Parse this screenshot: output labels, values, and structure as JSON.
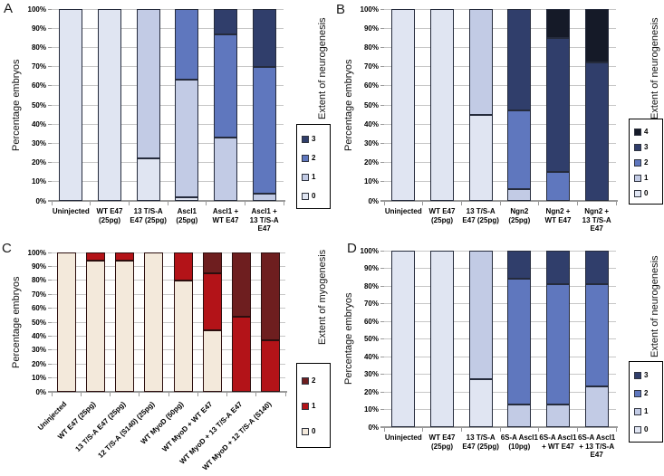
{
  "figure_title": "Extent of neurogenesis and myogenesis stacked bar figure",
  "yticks": [
    "100%",
    "90%",
    "80%",
    "70%",
    "60%",
    "50%",
    "40%",
    "30%",
    "20%",
    "10%",
    "0%"
  ],
  "chart_data": [
    {
      "type": "bar",
      "stacked": true,
      "panel_letter": "A",
      "ylabel": "Percentage embryos",
      "right_label": "Extent of neurogenesis",
      "ylim": [
        0,
        100
      ],
      "grid": true,
      "legend_position": "right",
      "legend_order": [
        "3",
        "2",
        "1",
        "0"
      ],
      "colors": {
        "0": "#e0e5f2",
        "1": "#c2cbe5",
        "2": "#5f77be",
        "3": "#303e6b",
        "4": "#151a28"
      },
      "segment_border": "#252b3c",
      "categories": [
        "Uninjected",
        "WT E47 (25pg)",
        "13 T/S-A E47 (25pg)",
        "Ascl1 (25pg)",
        "Ascl1 + WT E47",
        "Ascl1 + 13 T/S-A E47"
      ],
      "category_lines": [
        [
          "Uninjected"
        ],
        [
          "WT E47",
          "(25pg)"
        ],
        [
          "13 T/S-A",
          "E47 (25pg)"
        ],
        [
          "Ascl1",
          "(25pg)"
        ],
        [
          "Ascl1  +",
          "WT E47"
        ],
        [
          "Ascl1  +",
          "13 T/S-A",
          "E47"
        ]
      ],
      "series": [
        {
          "name": "0",
          "values": [
            100,
            100,
            22,
            2,
            0,
            0
          ]
        },
        {
          "name": "1",
          "values": [
            0,
            0,
            78,
            61,
            33,
            4
          ]
        },
        {
          "name": "2",
          "values": [
            0,
            0,
            0,
            37,
            54,
            66
          ]
        },
        {
          "name": "3",
          "values": [
            0,
            0,
            0,
            0,
            13,
            30
          ]
        }
      ]
    },
    {
      "type": "bar",
      "stacked": true,
      "panel_letter": "B",
      "ylabel": "Percentage embryos",
      "right_label": "Extent of neurogenesis",
      "ylim": [
        0,
        100
      ],
      "grid": true,
      "legend_position": "right",
      "legend_order": [
        "4",
        "3",
        "2",
        "1",
        "0"
      ],
      "colors": {
        "0": "#e0e5f2",
        "1": "#c2cbe5",
        "2": "#5f77be",
        "3": "#303e6b",
        "4": "#151a28"
      },
      "segment_border": "#252b3c",
      "categories": [
        "Uninjected",
        "WT E47 (25pg)",
        "13 T/S-A E47 (25pg)",
        "Ngn2 (25pg)",
        "Ngn2 + WT E47",
        "Ngn2 + 13 T/S-A E47"
      ],
      "category_lines": [
        [
          "Uninjected"
        ],
        [
          "WT E47",
          "(25pg)"
        ],
        [
          "13 T/S-A",
          "E47 (25pg)"
        ],
        [
          "Ngn2",
          "(25pg)"
        ],
        [
          "Ngn2 +",
          "WT E47"
        ],
        [
          "Ngn2 +",
          "13 T/S-A",
          "E47"
        ]
      ],
      "series": [
        {
          "name": "0",
          "values": [
            100,
            100,
            45,
            0,
            0,
            0
          ]
        },
        {
          "name": "1",
          "values": [
            0,
            0,
            55,
            6,
            0,
            0
          ]
        },
        {
          "name": "2",
          "values": [
            0,
            0,
            0,
            41,
            15,
            0
          ]
        },
        {
          "name": "3",
          "values": [
            0,
            0,
            0,
            53,
            70,
            72
          ]
        },
        {
          "name": "4",
          "values": [
            0,
            0,
            0,
            0,
            15,
            28
          ]
        }
      ]
    },
    {
      "type": "bar",
      "stacked": true,
      "panel_letter": "C",
      "ylabel": "Percentage embryos",
      "right_label": "Extent of myogenesis",
      "ylim": [
        0,
        100
      ],
      "grid": true,
      "legend_position": "right",
      "legend_order": [
        "2",
        "1",
        "0"
      ],
      "colors": {
        "0": "#f3e9db",
        "1": "#b31318",
        "2": "#6e1e1f"
      },
      "segment_border": "#2c0e0e",
      "categories": [
        "Uninjected",
        "WT E47 (25pg)",
        "13 T/S-A E47 (25pg)",
        "12 T/S-A (S140) (25pg)",
        "WT MyoD (50pg)",
        "WT MyoD + WT E47",
        "WT MyoD + 13 T/S-A E47",
        "WT MyoD + 12 T/S-A (S140)"
      ],
      "category_lines": [
        [
          "Uninjected"
        ],
        [
          "WT E47 (25pg)"
        ],
        [
          "13 T/S-A E47 (25pg)"
        ],
        [
          "12 T/S-A (S140) (25pg)"
        ],
        [
          "WT MyoD (50pg)"
        ],
        [
          "WT MyoD + WT E47"
        ],
        [
          "WT MyoD + 13 T/S-A E47"
        ],
        [
          "WT MyoD + 12 T/S-A (S140)"
        ]
      ],
      "series": [
        {
          "name": "0",
          "values": [
            100,
            94,
            94,
            100,
            80,
            44,
            0,
            0
          ]
        },
        {
          "name": "1",
          "values": [
            0,
            6,
            6,
            0,
            20,
            41,
            54,
            37
          ]
        },
        {
          "name": "2",
          "values": [
            0,
            0,
            0,
            0,
            0,
            15,
            46,
            63
          ]
        }
      ]
    },
    {
      "type": "bar",
      "stacked": true,
      "panel_letter": "D",
      "ylabel": "Percentage embryos",
      "right_label": "Extent of neurogenesis",
      "ylim": [
        0,
        100
      ],
      "grid": true,
      "legend_position": "right",
      "legend_order": [
        "3",
        "2",
        "1",
        "0"
      ],
      "colors": {
        "0": "#e0e5f2",
        "1": "#c2cbe5",
        "2": "#5f77be",
        "3": "#303e6b",
        "4": "#151a28"
      },
      "segment_border": "#252b3c",
      "categories": [
        "Uninjected",
        "WT E47 (25pg)",
        "13 T/S-A E47 (25pg)",
        "6S-A Ascl1 (10pg)",
        "6S-A Ascl1 + WT E47",
        "6S-A Ascl1 + 13 T/S-A E47"
      ],
      "category_lines": [
        [
          "Uninjected"
        ],
        [
          "WT E47",
          "(25pg)"
        ],
        [
          "13 T/S-A",
          "E47 (25pg)"
        ],
        [
          "6S-A Ascl1",
          "(10pg)"
        ],
        [
          "6S-A Ascl1",
          "+ WT E47"
        ],
        [
          "6S-A Ascl1",
          "+ 13 T/S-A",
          "E47"
        ]
      ],
      "series": [
        {
          "name": "0",
          "values": [
            100,
            100,
            27,
            0,
            0,
            0
          ]
        },
        {
          "name": "1",
          "values": [
            0,
            0,
            73,
            13,
            13,
            23
          ]
        },
        {
          "name": "2",
          "values": [
            0,
            0,
            0,
            71,
            68,
            58
          ]
        },
        {
          "name": "3",
          "values": [
            0,
            0,
            0,
            16,
            19,
            19
          ]
        }
      ]
    }
  ]
}
